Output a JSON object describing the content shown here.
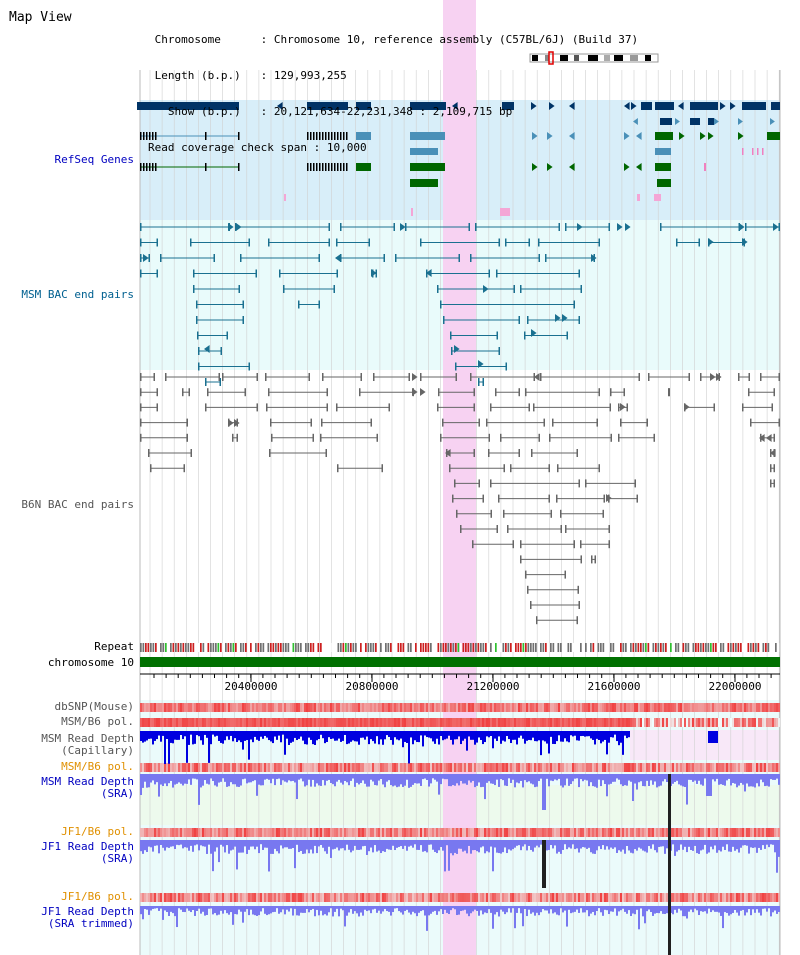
{
  "view_title": "Map View",
  "header": {
    "lines": [
      {
        "key": "Chromosome      ",
        "value": "Chromosome 10, reference assembly (C57BL/6J) (Build 37)"
      },
      {
        "key": "Length (b.p.)   ",
        "value": "129,993,255"
      },
      {
        "key": "  Show (b.p.)   ",
        "value": "20,121,634-22,231,348 : 2,109,715 bp"
      },
      {
        "key": "Read coverage check span",
        "value": "10,000"
      }
    ]
  },
  "tracks": {
    "refseq": "RefSeq Genes",
    "msm_bac": "MSM BAC end pairs",
    "b6n_bac": "B6N BAC end pairs",
    "repeat": "Repeat",
    "chromosome": "chromosome 10",
    "dbsnp": "dbSNP(Mouse)",
    "msm_b6_pol": "MSM/B6 pol.",
    "msm_depth_cap": "MSM Read Depth",
    "msm_depth_cap_sub": "(Capillary)",
    "msm_b6_pol2": "MSM/B6 pol.",
    "msm_depth_sra": "MSM Read Depth",
    "msm_depth_sra_sub": "(SRA)",
    "jf1_pol": "JF1/B6 pol.",
    "jf1_depth_sra": "JF1 Read Depth",
    "jf1_depth_sra_sub": "(SRA)",
    "jf1_pol2": "JF1/B6 pol.",
    "jf1_depth_trim": "JF1 Read Depth",
    "jf1_depth_trim_sub": "(SRA trimmed)"
  },
  "axis": {
    "ticks": [
      "20400000",
      "20800000",
      "21200000",
      "21600000",
      "22000000"
    ]
  },
  "colors": {
    "refseq_dark": "#003366",
    "refseq_mid": "#4a90b8",
    "refseq_green": "#006600",
    "msm_bac": "#1a7090",
    "b6n_bac": "#666666",
    "highlight": "#f7d2f2",
    "chromosome": "#007000",
    "depth_dark": "#0000e0",
    "depth_light": "#7878f0",
    "pol": "#f06060"
  }
}
